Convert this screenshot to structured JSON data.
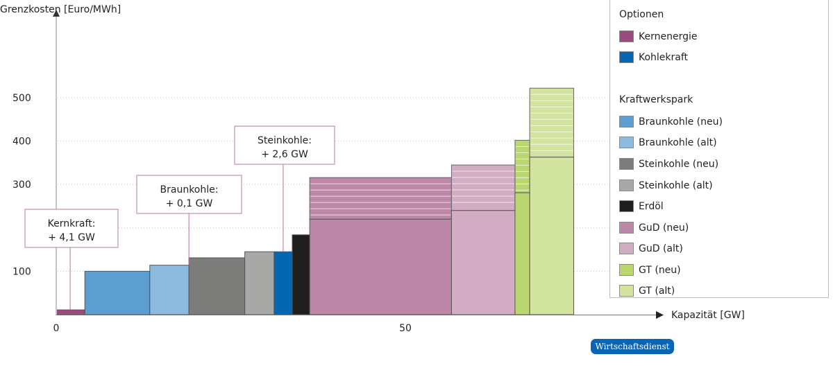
{
  "chart_data": {
    "type": "bar",
    "subtype": "merit-order step chart",
    "ylabel": "Grenzkosten [Euro/MWh]",
    "xlabel": "Kapazität [GW]",
    "xlim": [
      0,
      87
    ],
    "ylim": [
      0,
      700
    ],
    "xticks": [
      {
        "value": 0,
        "label": "0"
      },
      {
        "value": 50,
        "label": "50"
      }
    ],
    "yticks": [
      {
        "value": 100,
        "label": "100"
      },
      {
        "value": 200,
        "label": ""
      },
      {
        "value": 300,
        "label": "300"
      },
      {
        "value": 400,
        "label": "400"
      },
      {
        "value": 500,
        "label": "500"
      }
    ],
    "grid": "horizontal dotted",
    "bars": [
      {
        "name": "Kernenergie",
        "x0": 0,
        "x1": 4.1,
        "value": 11,
        "color": "#9b4a7d"
      },
      {
        "name": "Braunkohle (neu)",
        "x0": 4.1,
        "x1": 13.4,
        "value": 100,
        "color": "#5b9ecf"
      },
      {
        "name": "Braunkohle (alt)",
        "x0": 13.4,
        "x1": 19.0,
        "value": 114,
        "color": "#8cbbde"
      },
      {
        "name": "Steinkohle (neu)",
        "x0": 19.0,
        "x1": 27.0,
        "value": 131,
        "color": "#7c7c7b"
      },
      {
        "name": "Steinkohle (alt)",
        "x0": 27.0,
        "x1": 31.2,
        "value": 145,
        "color": "#a8a8a7"
      },
      {
        "name": "Kohlekraft",
        "x0": 31.2,
        "x1": 33.8,
        "value": 145,
        "color": "#0567b2"
      },
      {
        "name": "Erdöl",
        "x0": 33.8,
        "x1": 36.3,
        "value": 184,
        "color": "#1e1e1d"
      },
      {
        "name": "GuD (neu)",
        "x0": 36.3,
        "x1": 56.6,
        "value": 220,
        "range_top": 316,
        "color": "#bd88a8"
      },
      {
        "name": "GuD (alt)",
        "x0": 56.6,
        "x1": 65.7,
        "value": 240,
        "range_top": 345,
        "color": "#d2acc3"
      },
      {
        "name": "GT (neu)",
        "x0": 65.7,
        "x1": 67.8,
        "value": 281,
        "range_top": 402,
        "color": "#bad76f"
      },
      {
        "name": "GT (alt)",
        "x0": 67.8,
        "x1": 74.1,
        "value": 363,
        "range_top": 522,
        "color": "#d2e49f"
      }
    ],
    "annotations": [
      {
        "line1": "Kernkraft:",
        "line2": "+ 4,1 GW",
        "target_x": 2.0,
        "target_y": 11
      },
      {
        "line1": "Braunkohle:",
        "line2": "+ 0,1 GW",
        "target_x": 19.0,
        "target_y": 114
      },
      {
        "line1": "Steinkohle:",
        "line2": "+ 2,6 GW",
        "target_x": 32.5,
        "target_y": 145
      }
    ],
    "legend": {
      "placement": "right",
      "groups": [
        {
          "title": "Optionen",
          "items": [
            {
              "label": "Kernenergie",
              "color": "#9b4a7d"
            },
            {
              "label": "Kohlekraft",
              "color": "#0567b2"
            }
          ]
        },
        {
          "title": "Kraftwerkspark",
          "items": [
            {
              "label": "Braunkohle (neu)",
              "color": "#5b9ecf"
            },
            {
              "label": "Braunkohle (alt)",
              "color": "#8cbbde"
            },
            {
              "label": "Steinkohle (neu)",
              "color": "#7c7c7b"
            },
            {
              "label": "Steinkohle (alt)",
              "color": "#a8a8a7"
            },
            {
              "label": "Erdöl",
              "color": "#1e1e1d"
            },
            {
              "label": "GuD (neu)",
              "color": "#bd88a8"
            },
            {
              "label": "GuD (alt)",
              "color": "#d2acc3"
            },
            {
              "label": "GT (neu)",
              "color": "#bad76f"
            },
            {
              "label": "GT (alt)",
              "color": "#d2e49f"
            }
          ]
        }
      ]
    }
  },
  "source_badge": "Wirtschaftsdienst"
}
